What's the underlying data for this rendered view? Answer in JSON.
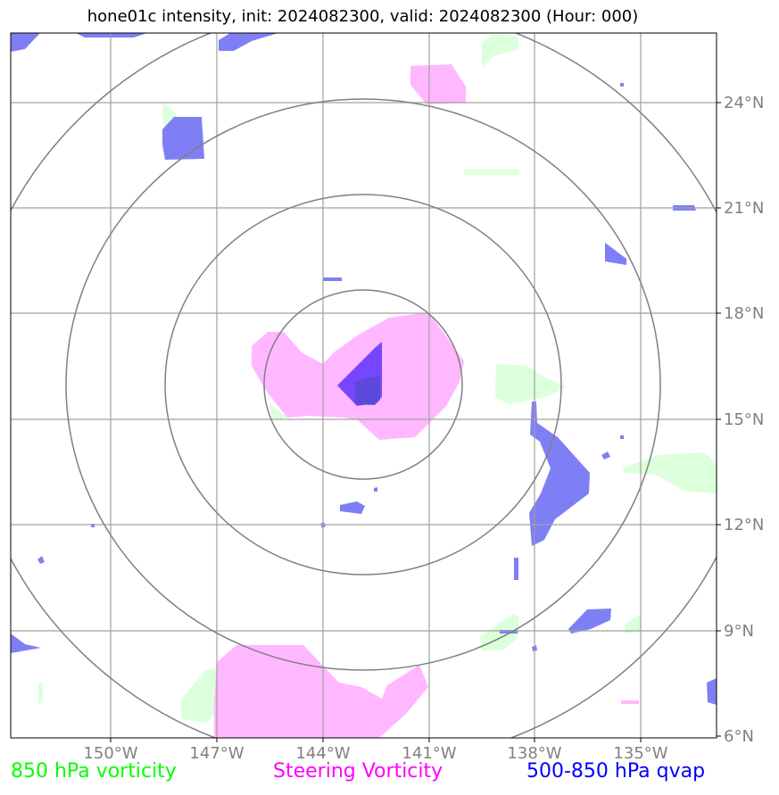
{
  "title": "hone01c intensity, init: 2024082300, valid: 2024082300 (Hour: 000)",
  "map": {
    "lon_labels": [
      "150°W",
      "147°W",
      "144°W",
      "141°W",
      "138°W",
      "135°W"
    ],
    "lat_labels": [
      "24°N",
      "21°N",
      "18°N",
      "15°N",
      "12°N",
      "9°N",
      "6°N"
    ],
    "grid_color": "#a0a0a0",
    "label_color": "#808080",
    "range_ring_color": "#808080",
    "range_ring_count": 4
  },
  "legend": {
    "vort850": {
      "label": "850 hPa vorticity",
      "color": "#00ff00"
    },
    "steering": {
      "label": "Steering Vorticity",
      "color": "#ff00ff"
    },
    "qvap": {
      "label": "500-850 hPa qvap",
      "color": "#0000ff"
    }
  },
  "fill_colors": {
    "green": "#dcffdc",
    "pink": "#ffb8ff",
    "blue": "#7878f4",
    "purple": "#7040ff",
    "dark_blue": "#5a48d8"
  }
}
